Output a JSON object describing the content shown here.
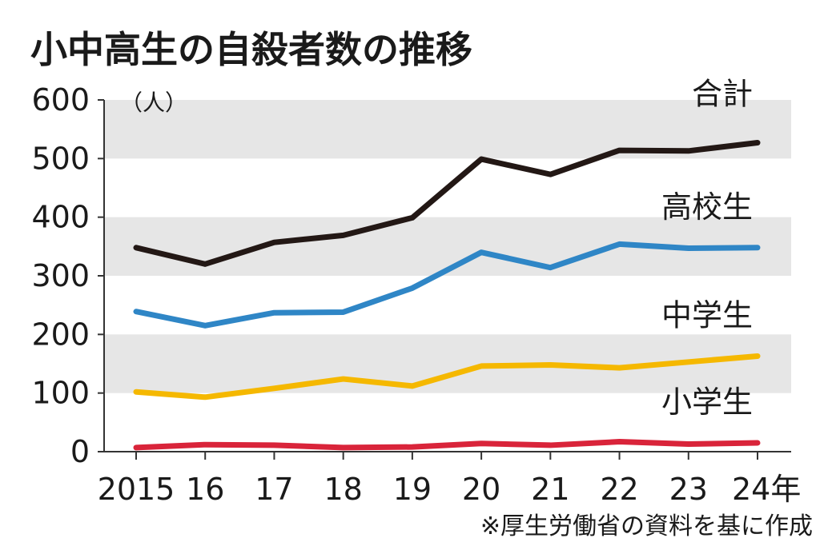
{
  "chart_data": {
    "type": "line",
    "title": "小中高生の自殺者数の推移",
    "unit_label": "（人）",
    "x": [
      "2015",
      "16",
      "17",
      "18",
      "19",
      "20",
      "21",
      "22",
      "23",
      "24年"
    ],
    "ylim": [
      0,
      600
    ],
    "yticks": [
      0,
      100,
      200,
      300,
      400,
      500,
      600
    ],
    "grid": "alternating horizontal bands",
    "series": [
      {
        "name": "合計",
        "color": "#231815",
        "values": [
          348,
          320,
          357,
          369,
          399,
          499,
          473,
          514,
          513,
          527
        ]
      },
      {
        "name": "高校生",
        "color": "#2f86c6",
        "values": [
          239,
          215,
          237,
          238,
          279,
          340,
          314,
          354,
          347,
          348
        ]
      },
      {
        "name": "中学生",
        "color": "#f5b800",
        "values": [
          102,
          93,
          108,
          124,
          112,
          146,
          148,
          143,
          153,
          163
        ]
      },
      {
        "name": "小学生",
        "color": "#d9243a",
        "values": [
          7,
          12,
          11,
          7,
          8,
          14,
          11,
          17,
          13,
          15
        ]
      }
    ],
    "source": "※厚生労働省の資料を基に作成"
  }
}
